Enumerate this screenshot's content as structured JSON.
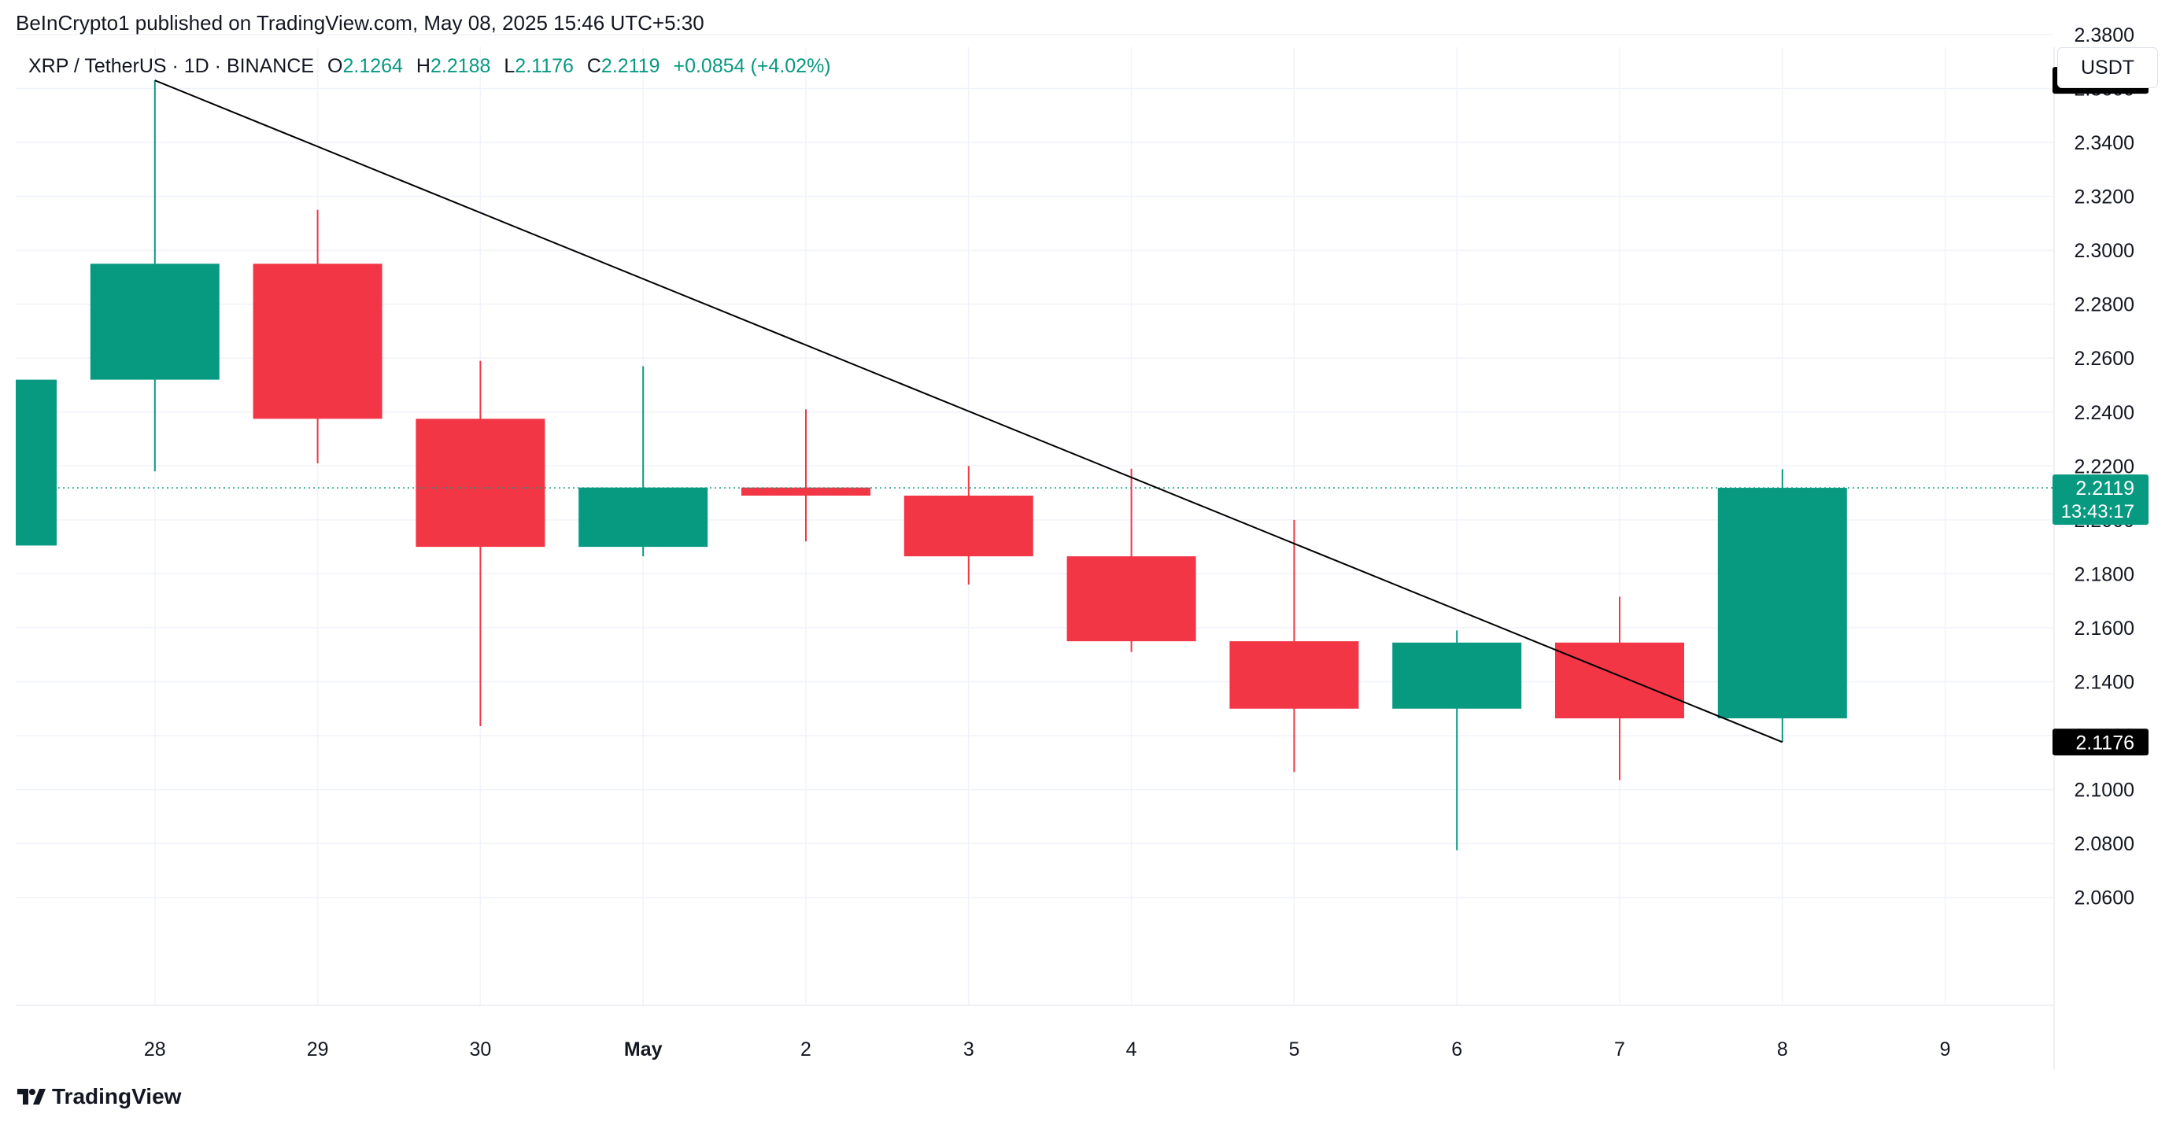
{
  "header": {
    "publisher_line": "BeInCrypto1 published on TradingView.com, May 08, 2025 15:46 UTC+5:30"
  },
  "legend": {
    "symbol": "XRP / TetherUS · 1D · BINANCE",
    "open_label": "O",
    "open": "2.1264",
    "high_label": "H",
    "high": "2.2188",
    "low_label": "L",
    "low": "2.1176",
    "close_label": "C",
    "close": "2.2119",
    "change": "+0.0854 (+4.02%)"
  },
  "currency_button": "USDT",
  "branding": {
    "logo_text": "TradingView",
    "logo_icon": "tradingview-logo-icon"
  },
  "colors": {
    "up": "#089981",
    "down": "#f23645",
    "grid": "#f0f3fa",
    "trendline": "#000000",
    "text": "#131722"
  },
  "chart_data": {
    "type": "candlestick",
    "symbol": "XRP / TetherUS",
    "interval": "1D",
    "exchange": "BINANCE",
    "ylim": [
      2.05,
      2.405
    ],
    "y_ticks": [
      "2.0600",
      "2.0800",
      "2.1000",
      "2.1200",
      "2.1400",
      "2.1600",
      "2.1800",
      "2.2000",
      "2.2200",
      "2.2400",
      "2.2600",
      "2.2800",
      "2.3000",
      "2.3200",
      "2.3400",
      "2.3600",
      "2.3800"
    ],
    "x_ticks": [
      "28",
      "29",
      "30",
      "May",
      "2",
      "3",
      "4",
      "5",
      "6",
      "7",
      "8",
      "9"
    ],
    "candles": [
      {
        "date": "27",
        "open": 2.1905,
        "high": 2.252,
        "low": 2.1905,
        "close": 2.252
      },
      {
        "date": "28",
        "open": 2.252,
        "high": 2.363,
        "low": 2.218,
        "close": 2.295
      },
      {
        "date": "29",
        "open": 2.295,
        "high": 2.315,
        "low": 2.221,
        "close": 2.2375
      },
      {
        "date": "30",
        "open": 2.2375,
        "high": 2.259,
        "low": 2.1235,
        "close": 2.19
      },
      {
        "date": "May",
        "open": 2.19,
        "high": 2.257,
        "low": 2.1865,
        "close": 2.212
      },
      {
        "date": "2",
        "open": 2.212,
        "high": 2.241,
        "low": 2.192,
        "close": 2.209
      },
      {
        "date": "3",
        "open": 2.209,
        "high": 2.22,
        "low": 2.176,
        "close": 2.1865
      },
      {
        "date": "4",
        "open": 2.1865,
        "high": 2.219,
        "low": 2.151,
        "close": 2.155
      },
      {
        "date": "5",
        "open": 2.155,
        "high": 2.2,
        "low": 2.1065,
        "close": 2.13
      },
      {
        "date": "6",
        "open": 2.13,
        "high": 2.159,
        "low": 2.0775,
        "close": 2.1545
      },
      {
        "date": "7",
        "open": 2.1545,
        "high": 2.1715,
        "low": 2.1035,
        "close": 2.1264
      },
      {
        "date": "8",
        "open": 2.1264,
        "high": 2.2188,
        "low": 2.1176,
        "close": 2.2119
      }
    ],
    "trendline": {
      "from": {
        "date": "28",
        "price": 2.363
      },
      "to": {
        "date": "8",
        "price": 2.1176
      }
    },
    "price_labels": [
      {
        "name": "high-marker",
        "text": "2.3630",
        "price": 2.363,
        "bg": "#000000"
      },
      {
        "name": "last-price",
        "text": "2.2119",
        "sub": "13:43:17",
        "price": 2.2119,
        "bg": "#089981"
      },
      {
        "name": "low-marker",
        "text": "2.1176",
        "price": 2.1176,
        "bg": "#000000"
      }
    ],
    "grid": true
  }
}
